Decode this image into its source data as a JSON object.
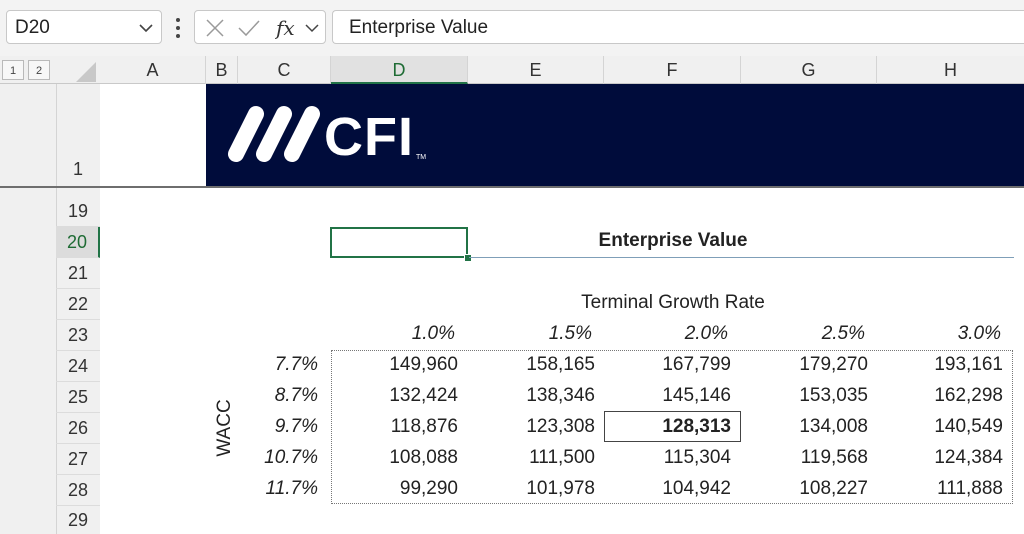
{
  "formula_bar": {
    "name_box": "D20",
    "content": "Enterprise Value"
  },
  "outline_levels": [
    "1",
    "2"
  ],
  "columns": [
    {
      "label": "A",
      "selected": false
    },
    {
      "label": "B",
      "selected": false
    },
    {
      "label": "C",
      "selected": false
    },
    {
      "label": "D",
      "selected": true
    },
    {
      "label": "E",
      "selected": false
    },
    {
      "label": "F",
      "selected": false
    },
    {
      "label": "G",
      "selected": false
    },
    {
      "label": "H",
      "selected": false
    }
  ],
  "rows": [
    "1",
    "19",
    "20",
    "21",
    "22",
    "23",
    "24",
    "25",
    "26",
    "27",
    "28",
    "29"
  ],
  "selected_row": "20",
  "banner": {
    "logo_text": "CFI",
    "trademark": "TM",
    "background": "#000c3b"
  },
  "sheet": {
    "title": "Enterprise Value",
    "col_axis_label": "Terminal Growth Rate",
    "row_axis_label": "WACC",
    "growth_rates": [
      "1.0%",
      "1.5%",
      "2.0%",
      "2.5%",
      "3.0%"
    ],
    "wacc_rates": [
      "7.7%",
      "8.7%",
      "9.7%",
      "10.7%",
      "11.7%"
    ],
    "values": [
      [
        "149,960",
        "158,165",
        "167,799",
        "179,270",
        "193,161"
      ],
      [
        "132,424",
        "138,346",
        "145,146",
        "153,035",
        "162,298"
      ],
      [
        "118,876",
        "123,308",
        "128,313",
        "134,008",
        "140,549"
      ],
      [
        "108,088",
        "111,500",
        "115,304",
        "119,568",
        "124,384"
      ],
      [
        "99,290",
        "101,978",
        "104,942",
        "108,227",
        "111,888"
      ]
    ]
  },
  "colors": {
    "accent": "#217346"
  }
}
